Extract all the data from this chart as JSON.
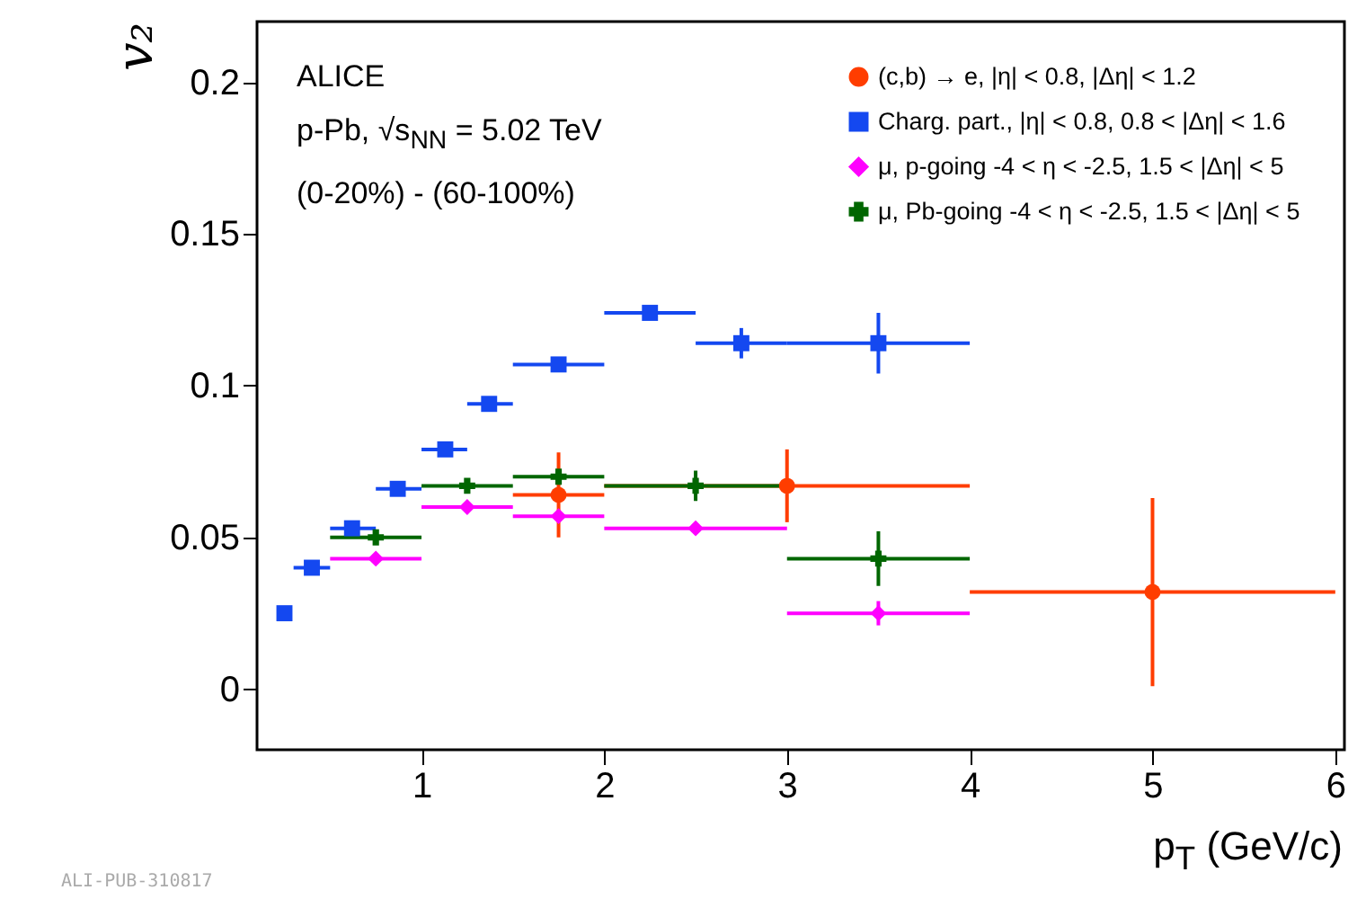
{
  "chart_data": {
    "type": "scatter",
    "xlabel": "p$_{T}$ (GeV/c)",
    "ylabel": "v₂",
    "xlim": [
      0.1,
      6.05
    ],
    "ylim": [
      -0.02,
      0.22
    ],
    "xticks": [
      1,
      2,
      3,
      4,
      5,
      6
    ],
    "yticks": [
      0,
      0.05,
      0.1,
      0.15,
      0.2
    ],
    "grid": false,
    "legend": "top right",
    "annotations": [
      "ALICE",
      "p-Pb, √s$_{NN}$ = 5.02 TeV",
      "(0-20%) - (60-100%)",
      "ALI-PUB-310817"
    ],
    "series": [
      {
        "name": "(c,b) → e, |η| < 0.8, |Δη| < 1.2",
        "color": "#ff3d00",
        "marker": "circle",
        "x": [
          1.75,
          3,
          5
        ],
        "values": [
          0.064,
          0.067,
          0.032
        ],
        "errors": [
          0.014,
          0.012,
          0.031
        ],
        "xerrors": [
          [
            1.5,
            2
          ],
          [
            2,
            4
          ],
          [
            4,
            6
          ]
        ]
      },
      {
        "name": "Charg. part., |η| < 0.8, 0.8 < |Δη| < 1.6",
        "color": "#1448f0",
        "marker": "square",
        "x": [
          0.25,
          0.4,
          0.62,
          0.87,
          1.13,
          1.37,
          1.75,
          2.25,
          2.75,
          3.5
        ],
        "values": [
          0.025,
          0.04,
          0.053,
          0.066,
          0.079,
          0.094,
          0.107,
          0.124,
          0.114,
          0.114
        ],
        "errors": [
          null,
          null,
          null,
          null,
          null,
          null,
          null,
          null,
          0.005,
          0.01
        ],
        "xerrors": [
          null,
          [
            0.3,
            0.5
          ],
          [
            0.5,
            0.75
          ],
          [
            0.75,
            1
          ],
          [
            1,
            1.25
          ],
          [
            1.25,
            1.5
          ],
          [
            1.5,
            2
          ],
          [
            2,
            2.5
          ],
          [
            2.5,
            3
          ],
          [
            3,
            4
          ]
        ]
      },
      {
        "name": "μ, p-going -4 < η < -2.5, 1.5 < |Δη| < 5",
        "color": "#ff00ff",
        "marker": "diamond",
        "x": [
          0.75,
          1.25,
          1.75,
          2.5,
          3.5
        ],
        "values": [
          0.043,
          0.06,
          0.057,
          0.053,
          0.025
        ],
        "errors": [
          null,
          null,
          null,
          null,
          0.004
        ],
        "xerrors": [
          [
            0.5,
            1
          ],
          [
            1,
            1.5
          ],
          [
            1.5,
            2
          ],
          [
            2,
            3
          ],
          [
            3,
            4
          ]
        ]
      },
      {
        "name": "μ, Pb-going -4 < η < -2.5, 1.5 < |Δη| < 5",
        "color": "#006600",
        "marker": "cross",
        "x": [
          0.75,
          1.25,
          1.75,
          2.5,
          3.5
        ],
        "values": [
          0.05,
          0.067,
          0.07,
          0.067,
          0.043
        ],
        "errors": [
          null,
          null,
          null,
          0.005,
          0.009
        ],
        "xerrors": [
          [
            0.5,
            1
          ],
          [
            1,
            1.5
          ],
          [
            1.5,
            2
          ],
          [
            2,
            3
          ],
          [
            3,
            4
          ]
        ]
      }
    ]
  }
}
